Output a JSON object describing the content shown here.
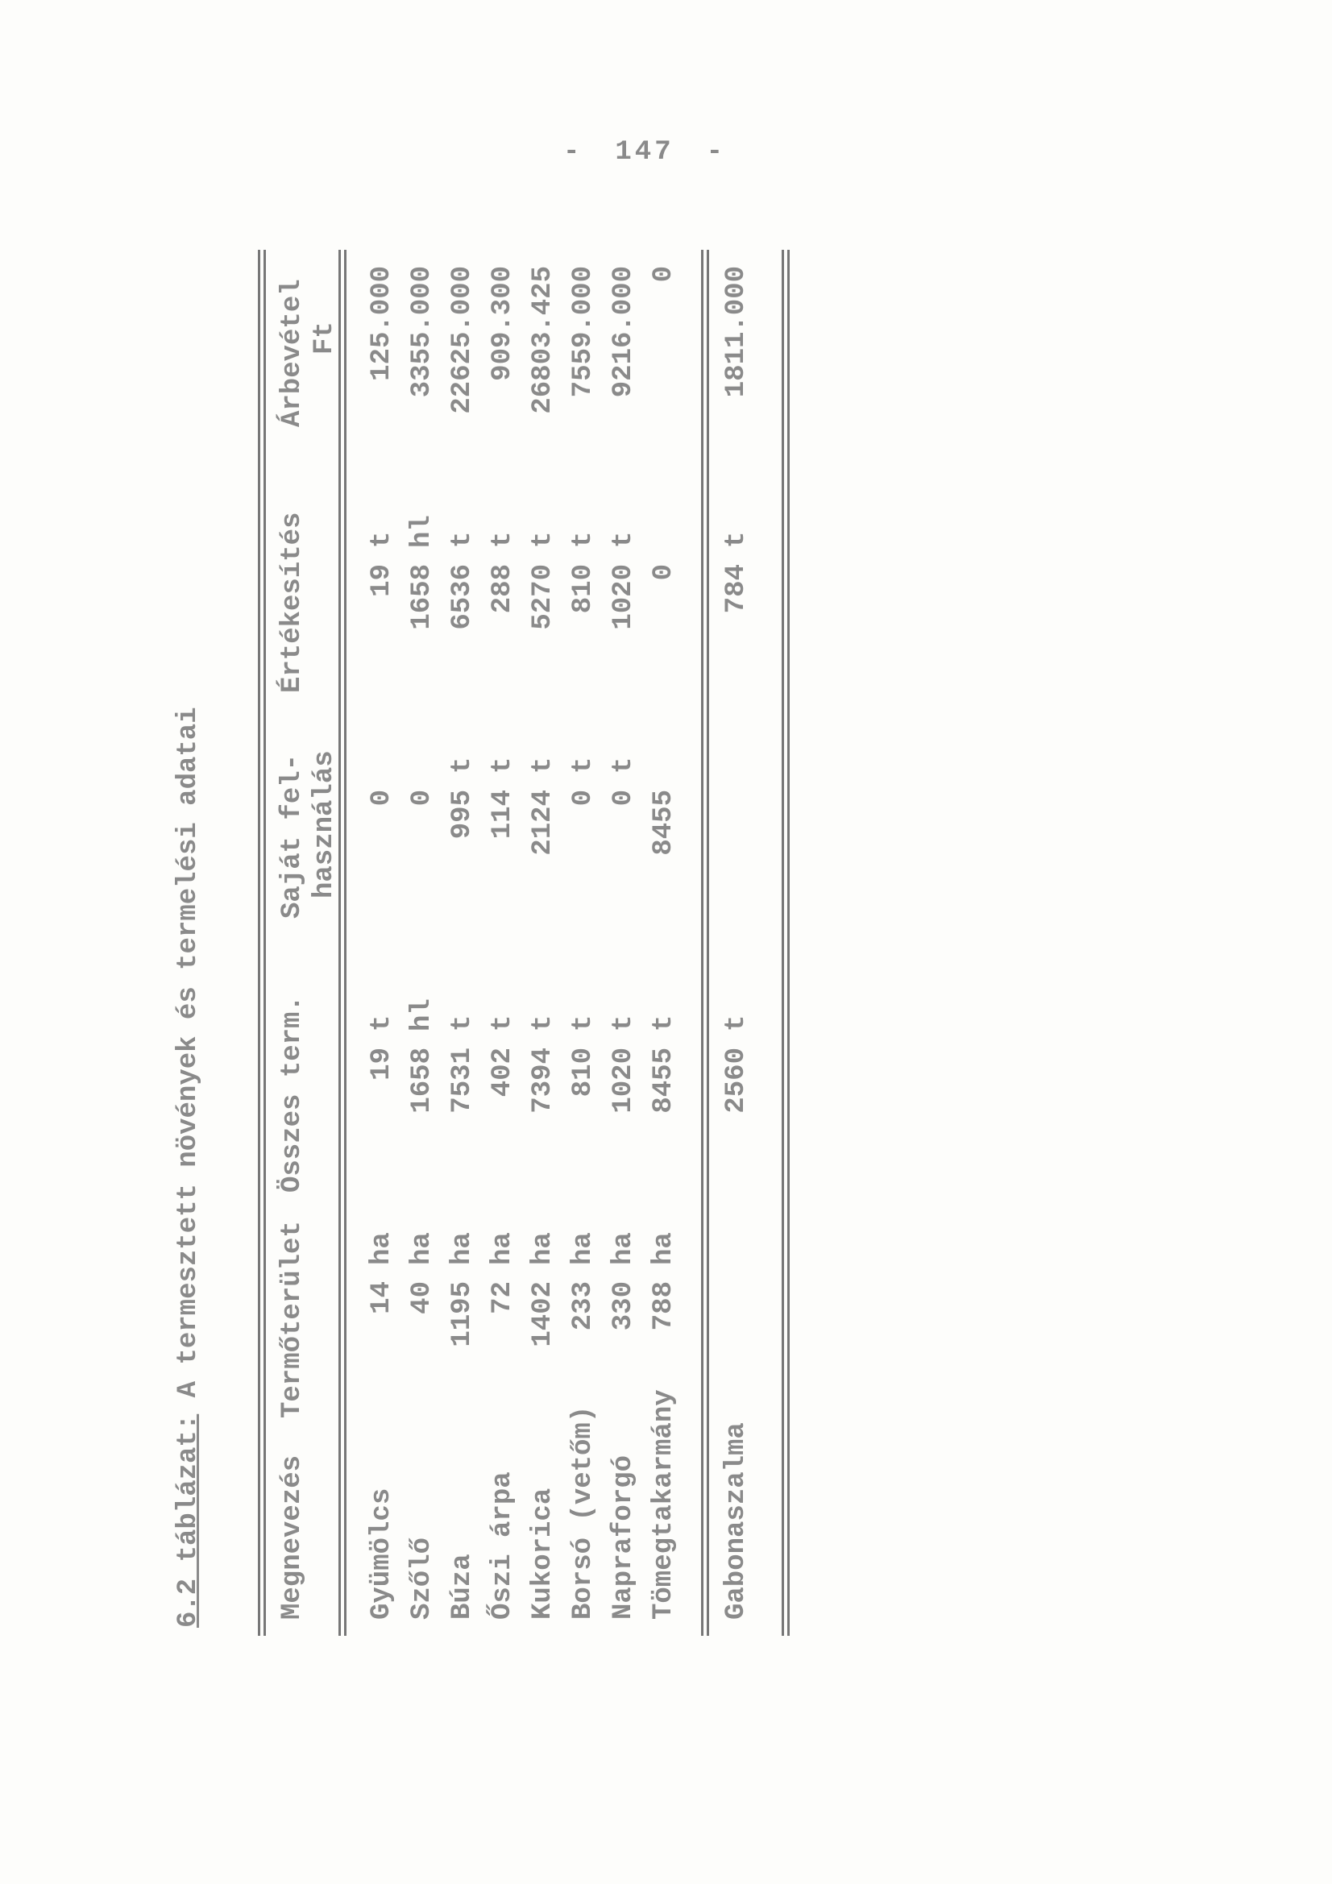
{
  "page_number": "147",
  "page_number_dash": "-",
  "title": {
    "label": "6.2 táblázat:",
    "text": "A termesztett növények és termelési adatai"
  },
  "headers": {
    "name": "Megnevezés",
    "area": "Termőterület",
    "total": "Összes term.",
    "own_use": [
      "Saját fel-",
      "használás"
    ],
    "sales": "Értékesítés",
    "revenue": [
      "Árbevétel",
      "Ft"
    ]
  },
  "rows": [
    {
      "name": "Gyümölcs",
      "area": "14",
      "area_unit": "ha",
      "total": "19",
      "total_unit": "t",
      "own": "0",
      "own_unit": "",
      "sales": "19",
      "sales_unit": "t",
      "revenue": "125.000"
    },
    {
      "name": "Szőlő",
      "area": "40",
      "area_unit": "ha",
      "total": "1658",
      "total_unit": "hl",
      "own": "0",
      "own_unit": "",
      "sales": "1658",
      "sales_unit": "hl",
      "revenue": "3355.000"
    },
    {
      "name": "Búza",
      "area": "1195",
      "area_unit": "ha",
      "total": "7531",
      "total_unit": "t",
      "own": "995",
      "own_unit": "t",
      "sales": "6536",
      "sales_unit": "t",
      "revenue": "22625.000"
    },
    {
      "name": "Őszi árpa",
      "area": "72",
      "area_unit": "ha",
      "total": "402",
      "total_unit": "t",
      "own": "114",
      "own_unit": "t",
      "sales": "288",
      "sales_unit": "t",
      "revenue": "909.300"
    },
    {
      "name": "Kukorica",
      "area": "1402",
      "area_unit": "ha",
      "total": "7394",
      "total_unit": "t",
      "own": "2124",
      "own_unit": "t",
      "sales": "5270",
      "sales_unit": "t",
      "revenue": "26803.425"
    },
    {
      "name": "Borsó (vetőm)",
      "area": "233",
      "area_unit": "ha",
      "total": "810",
      "total_unit": "t",
      "own": "0",
      "own_unit": "t",
      "sales": "810",
      "sales_unit": "t",
      "revenue": "7559.000"
    },
    {
      "name": "Napraforgó",
      "area": "330",
      "area_unit": "ha",
      "total": "1020",
      "total_unit": "t",
      "own": "0",
      "own_unit": "t",
      "sales": "1020",
      "sales_unit": "t",
      "revenue": "9216.000"
    },
    {
      "name": "Tömegtakarmány",
      "area": "788",
      "area_unit": "ha",
      "total": "8455",
      "total_unit": "t",
      "own": "8455",
      "own_unit": "",
      "sales": "0",
      "sales_unit": "",
      "revenue": "0"
    }
  ],
  "total_row": {
    "name": "Gabonaszalma",
    "total": "2560",
    "total_unit": "t",
    "sales": "784",
    "sales_unit": "t",
    "revenue": "1811.000"
  }
}
